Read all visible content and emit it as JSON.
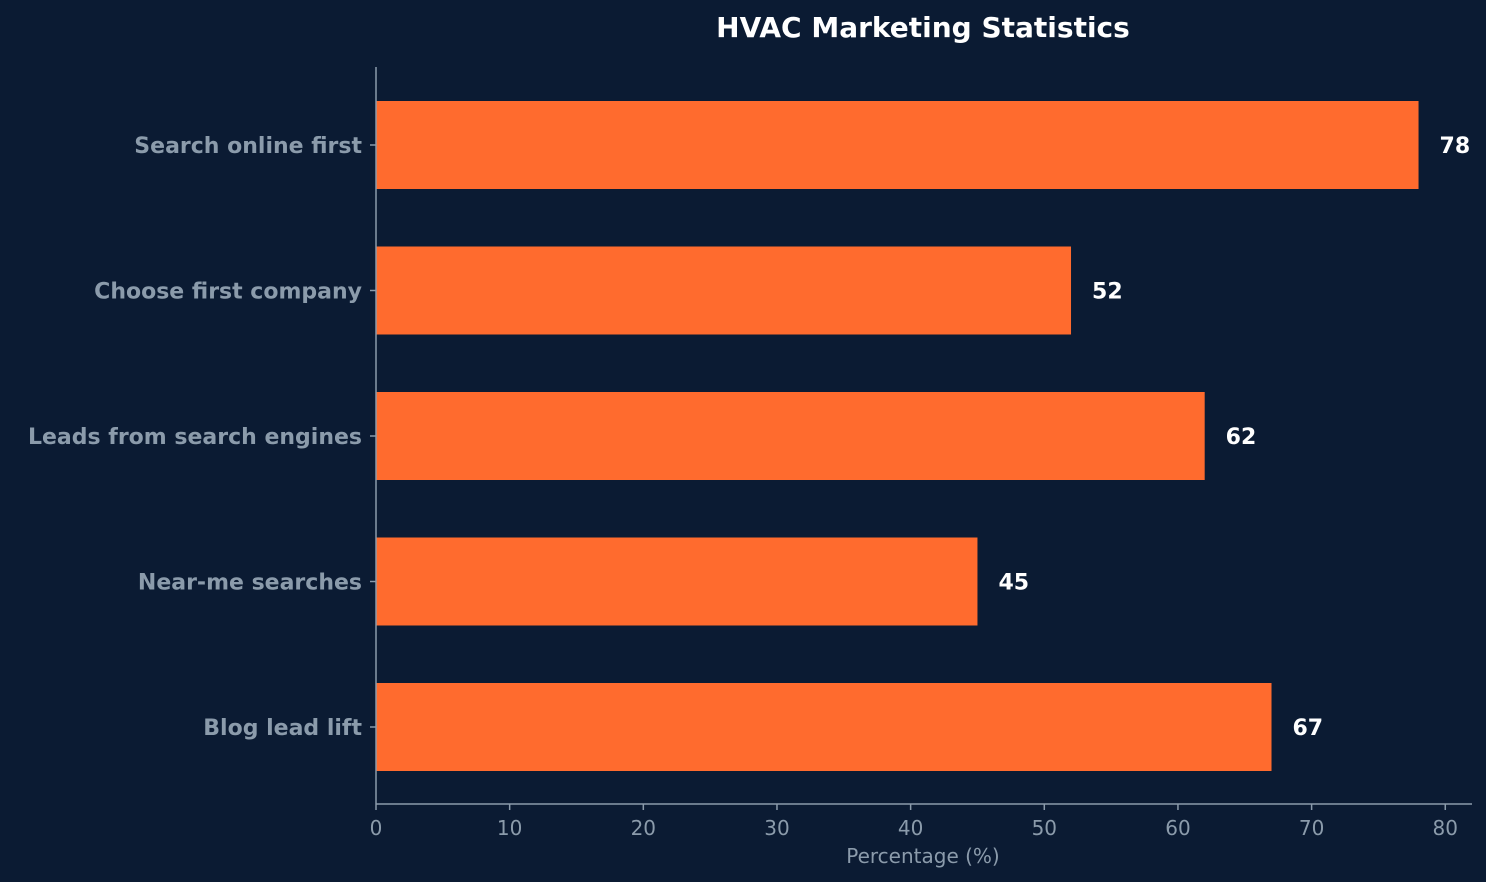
{
  "chart_data": {
    "type": "bar",
    "orientation": "horizontal",
    "title": "HVAC Marketing Statistics",
    "xlabel": "Percentage (%)",
    "ylabel": "",
    "categories": [
      "Search online first",
      "Choose first company",
      "Leads from search engines",
      "Near-me searches",
      "Blog lead lift"
    ],
    "values": [
      78,
      52,
      62,
      45,
      67
    ],
    "xlim": [
      0,
      82
    ],
    "x_ticks": [
      0,
      10,
      20,
      30,
      40,
      50,
      60,
      70,
      80
    ],
    "grid": false,
    "legend": "none",
    "data_labels": true
  },
  "colors": {
    "background": "#0b1b33",
    "bar": "#ff6b2e",
    "axis": "#8b9bab",
    "title": "#ffffff",
    "value_label": "#ffffff"
  }
}
